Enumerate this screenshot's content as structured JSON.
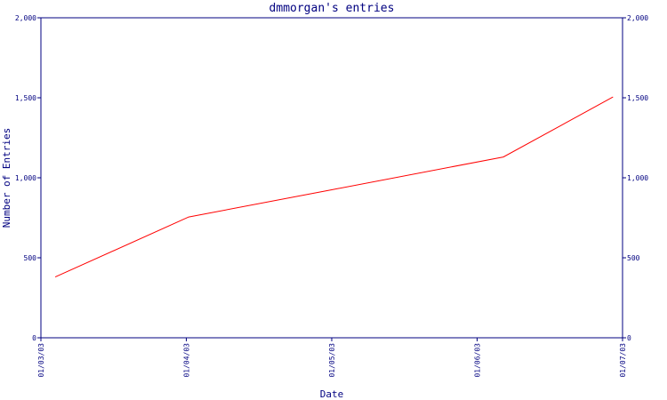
{
  "chart_data": {
    "type": "line",
    "title": "dmmorgan's entries",
    "xlabel": "Date",
    "ylabel": "Number of Entries",
    "x_ticks": [
      "01/03/03",
      "01/04/03",
      "01/05/03",
      "01/06/03",
      "01/07/03"
    ],
    "y_ticks": [
      "0",
      "500",
      "1,000",
      "1,500",
      "2,000"
    ],
    "xlim": [
      "2003-03-01",
      "2003-07-01"
    ],
    "ylim": [
      0,
      2000
    ],
    "series": [
      {
        "color": "#ff0000",
        "points": [
          {
            "x": "2003-03-04",
            "y": 380
          },
          {
            "x": "2003-04-01",
            "y": 755
          },
          {
            "x": "2003-05-01",
            "y": 925
          },
          {
            "x": "2003-06-06",
            "y": 1130
          },
          {
            "x": "2003-06-29",
            "y": 1505
          }
        ]
      }
    ],
    "grid": false,
    "axis_color": "#000080",
    "mirrored_right_axis": true
  }
}
